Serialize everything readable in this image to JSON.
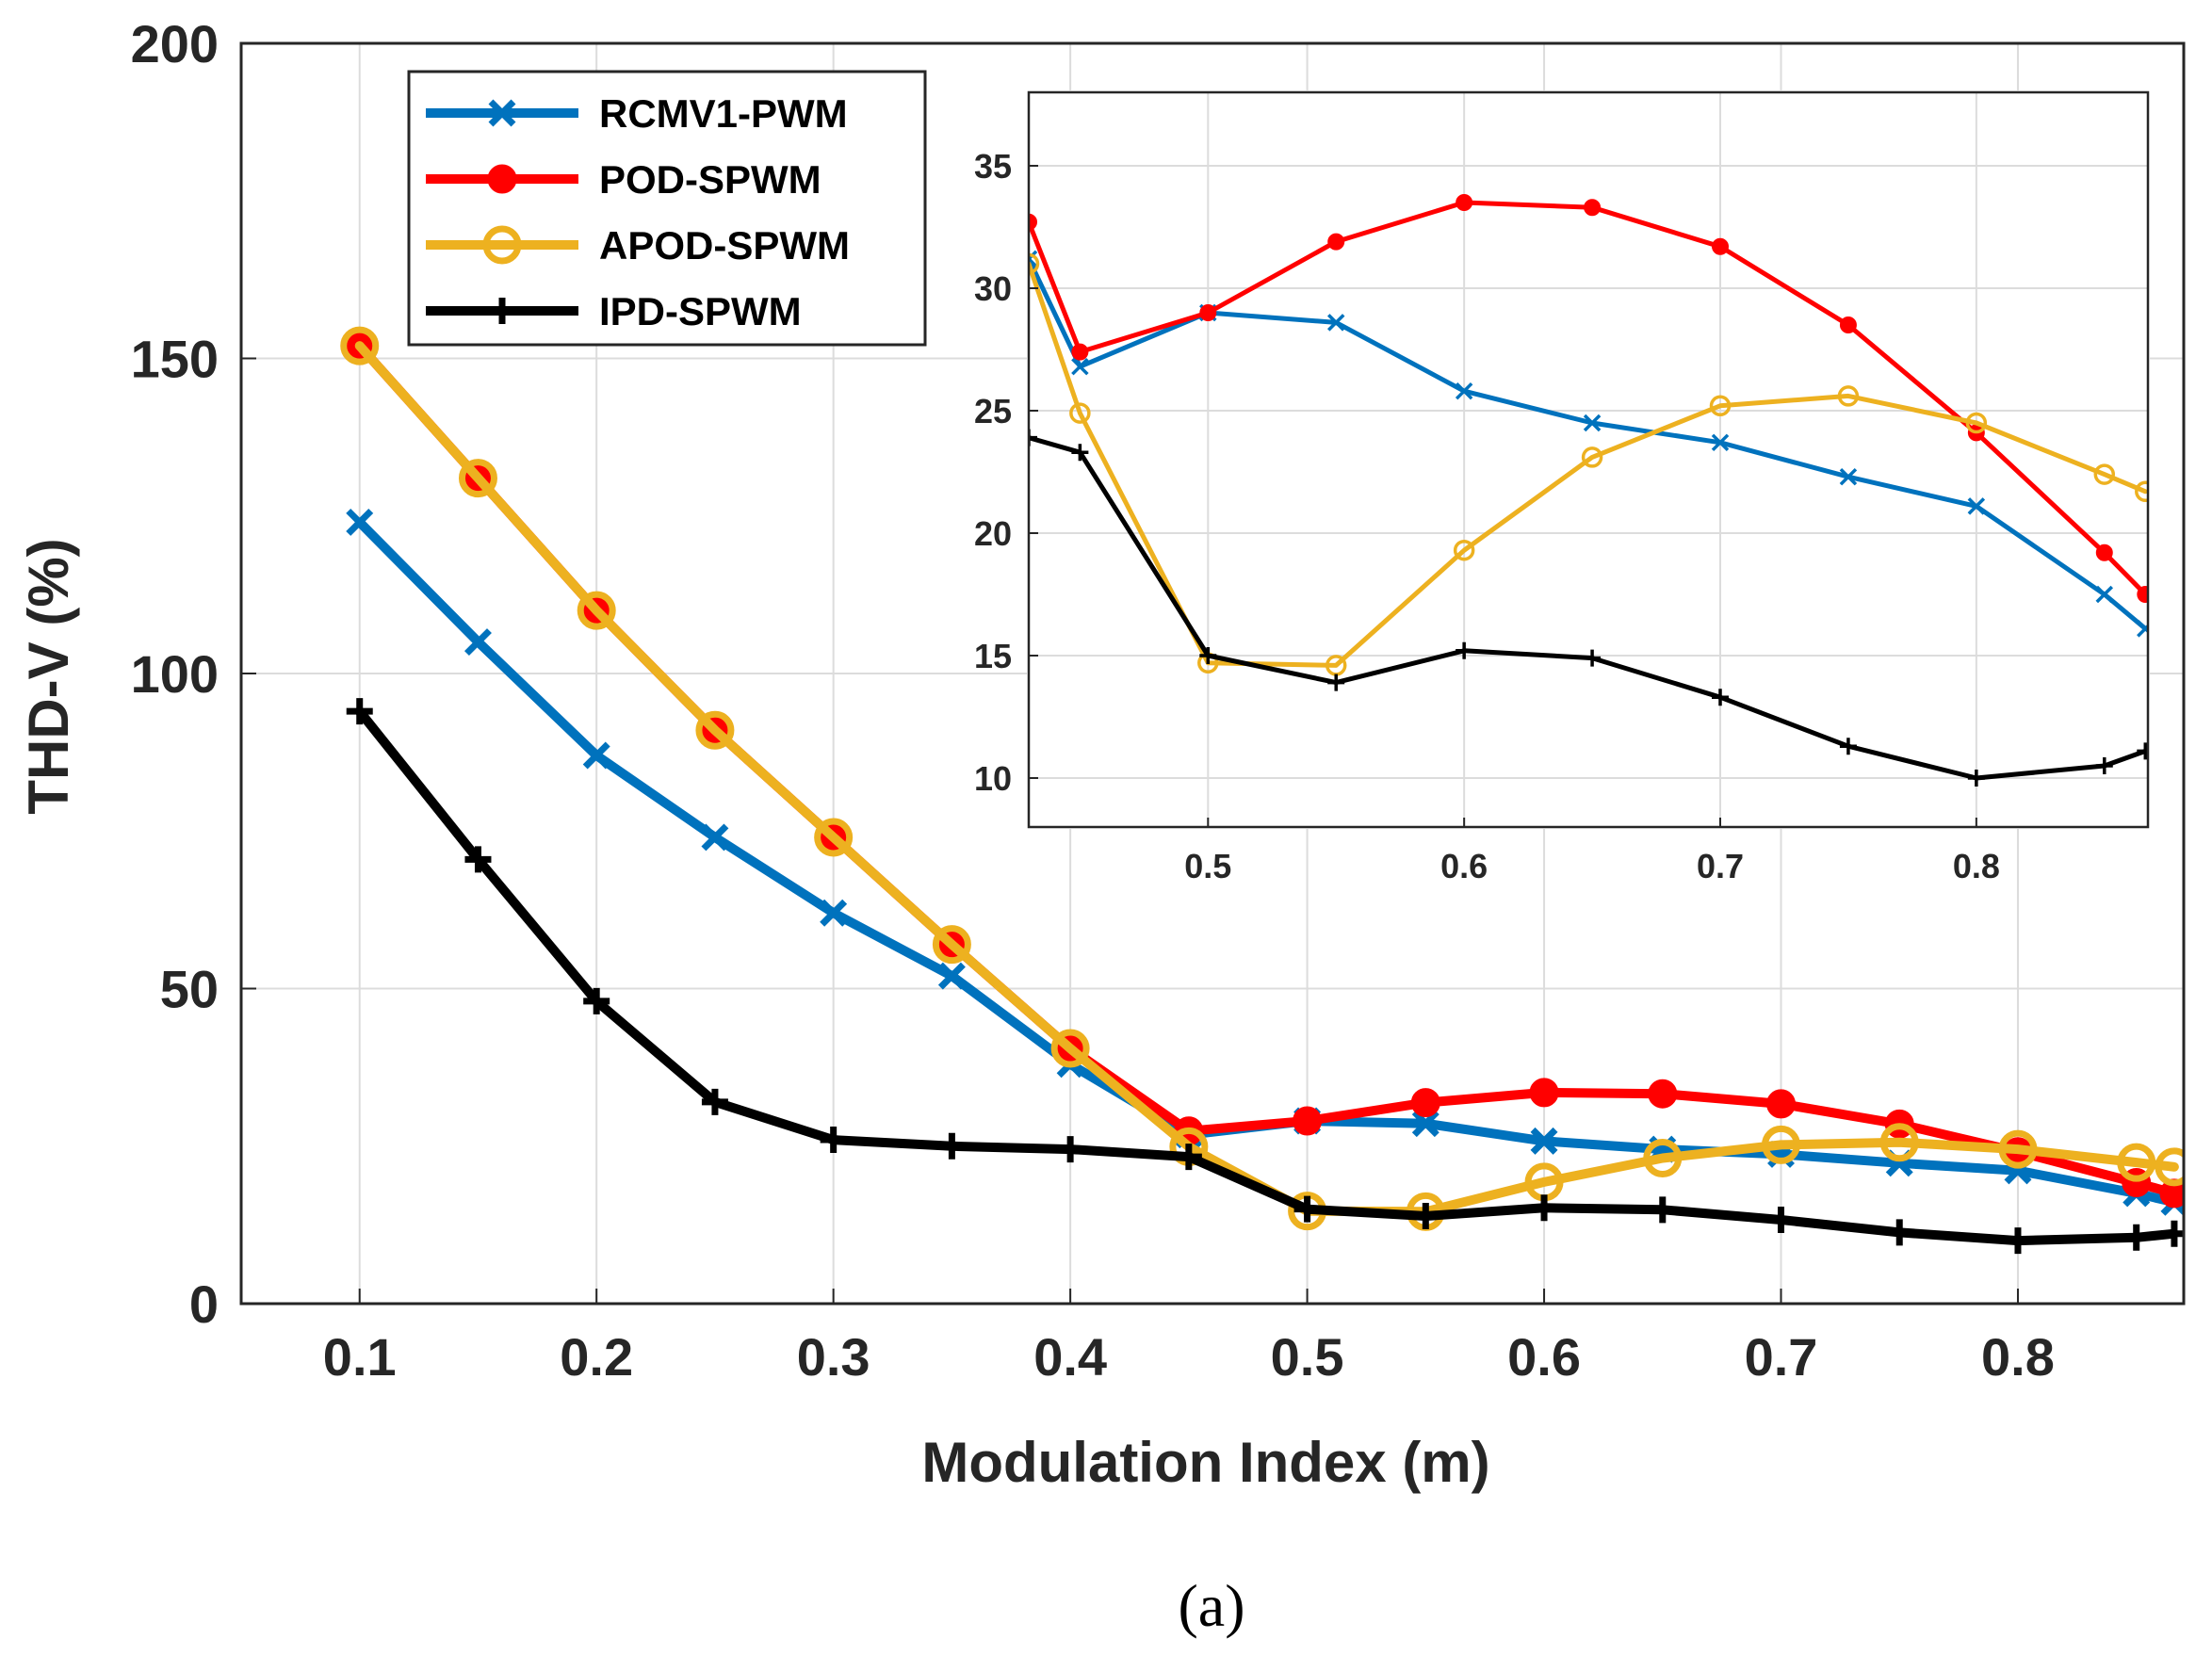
{
  "caption": "(a)",
  "colors": {
    "rcmv1": "#0072BD",
    "pod": "#FF0000",
    "apod": "#EDB120",
    "ipd": "#000000",
    "grid": "#dcdcdc",
    "axis": "#262626"
  },
  "chart_data": [
    {
      "type": "line",
      "name": "main",
      "title": "",
      "xlabel": "Modulation Index (m)",
      "ylabel": "THD-V (%)",
      "xlim": [
        0.05,
        0.87
      ],
      "ylim": [
        0,
        200
      ],
      "xticks": [
        0.1,
        0.2,
        0.3,
        0.4,
        0.5,
        0.6,
        0.7,
        0.8
      ],
      "xtick_labels": [
        "0.1",
        "0.2",
        "0.3",
        "0.4",
        "0.5",
        "0.6",
        "0.7",
        "0.8"
      ],
      "yticks": [
        0,
        50,
        100,
        150,
        200
      ],
      "ytick_labels": [
        "0",
        "50",
        "100",
        "150",
        "200"
      ],
      "grid": true,
      "legend_position": "top-left",
      "x": [
        0.1,
        0.15,
        0.2,
        0.25,
        0.3,
        0.35,
        0.4,
        0.45,
        0.5,
        0.55,
        0.6,
        0.65,
        0.7,
        0.75,
        0.8,
        0.85,
        0.866
      ],
      "series": [
        {
          "key": "rcmv1",
          "name": "RCMV1-PWM",
          "marker": "x",
          "values": [
            124,
            105,
            87,
            74,
            62,
            52,
            38,
            26.8,
            29,
            28.6,
            25.8,
            24.5,
            23.7,
            22.3,
            21.1,
            17.5,
            16.1
          ]
        },
        {
          "key": "pod",
          "name": "POD-SPWM",
          "marker": "o-filled",
          "values": [
            152,
            131,
            110,
            91,
            74,
            57,
            40.5,
            27.4,
            29,
            31.9,
            33.5,
            33.3,
            31.7,
            28.5,
            24.1,
            19.2,
            17.5
          ]
        },
        {
          "key": "apod",
          "name": "APOD-SPWM",
          "marker": "o-open",
          "values": [
            152,
            131,
            110,
            91,
            74,
            57,
            40.5,
            24.9,
            14.7,
            14.6,
            19.3,
            23.1,
            25.2,
            25.6,
            24.5,
            22.4,
            21.7
          ]
        },
        {
          "key": "ipd",
          "name": "IPD-SPWM",
          "marker": "+",
          "values": [
            94,
            70.5,
            48,
            32,
            26,
            25,
            24.5,
            23.3,
            15.0,
            13.9,
            15.2,
            14.9,
            13.3,
            11.3,
            10.0,
            10.5,
            11.1
          ]
        }
      ]
    },
    {
      "type": "line",
      "name": "inset",
      "title": "",
      "xlabel": "",
      "ylabel": "",
      "xlim": [
        0.43,
        0.867
      ],
      "ylim": [
        8,
        38
      ],
      "xticks": [
        0.5,
        0.6,
        0.7,
        0.8
      ],
      "xtick_labels": [
        "0.5",
        "0.6",
        "0.7",
        "0.8"
      ],
      "yticks": [
        10,
        15,
        20,
        25,
        30,
        35
      ],
      "ytick_labels": [
        "10",
        "15",
        "20",
        "25",
        "30",
        "35"
      ],
      "grid": true,
      "position": "top-right",
      "x": [
        0.43,
        0.45,
        0.5,
        0.55,
        0.6,
        0.65,
        0.7,
        0.75,
        0.8,
        0.85,
        0.866
      ],
      "series": [
        {
          "key": "rcmv1",
          "name": "RCMV1-PWM",
          "marker": "x",
          "values": [
            31.2,
            26.8,
            29,
            28.6,
            25.8,
            24.5,
            23.7,
            22.3,
            21.1,
            17.5,
            16.1
          ]
        },
        {
          "key": "pod",
          "name": "POD-SPWM",
          "marker": "o-filled",
          "values": [
            32.7,
            27.4,
            29,
            31.9,
            33.5,
            33.3,
            31.7,
            28.5,
            24.1,
            19.2,
            17.5
          ]
        },
        {
          "key": "apod",
          "name": "APOD-SPWM",
          "marker": "o-open",
          "values": [
            31.0,
            24.9,
            14.7,
            14.6,
            19.3,
            23.1,
            25.2,
            25.6,
            24.5,
            22.4,
            21.7
          ]
        },
        {
          "key": "ipd",
          "name": "IPD-SPWM",
          "marker": "+",
          "values": [
            23.9,
            23.3,
            15.0,
            13.9,
            15.2,
            14.9,
            13.3,
            11.3,
            10.0,
            10.5,
            11.1
          ]
        }
      ]
    }
  ]
}
